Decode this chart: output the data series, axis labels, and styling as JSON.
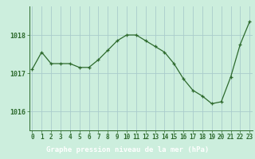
{
  "x": [
    0,
    1,
    2,
    3,
    4,
    5,
    6,
    7,
    8,
    9,
    10,
    11,
    12,
    13,
    14,
    15,
    16,
    17,
    18,
    19,
    20,
    21,
    22,
    23
  ],
  "y": [
    1017.1,
    1017.55,
    1017.25,
    1017.25,
    1017.25,
    1017.15,
    1017.15,
    1017.35,
    1017.6,
    1017.85,
    1018.0,
    1018.0,
    1017.85,
    1017.7,
    1017.55,
    1017.25,
    1016.85,
    1016.55,
    1016.4,
    1016.2,
    1016.25,
    1016.9,
    1017.75,
    1018.35
  ],
  "line_color": "#2d6a2d",
  "marker": "+",
  "bg_color": "#cceedd",
  "xlabel_bg_color": "#336633",
  "grid_color": "#aacccc",
  "axis_color": "#2d6a2d",
  "text_color": "#2d6a2d",
  "xlabel": "Graphe pression niveau de la mer (hPa)",
  "xlabel_fontsize": 6.5,
  "tick_fontsize": 5.5,
  "ytick_fontsize": 6.0,
  "yticks": [
    1016,
    1017,
    1018
  ],
  "ylim": [
    1015.5,
    1018.75
  ],
  "xlim": [
    -0.3,
    23.3
  ]
}
